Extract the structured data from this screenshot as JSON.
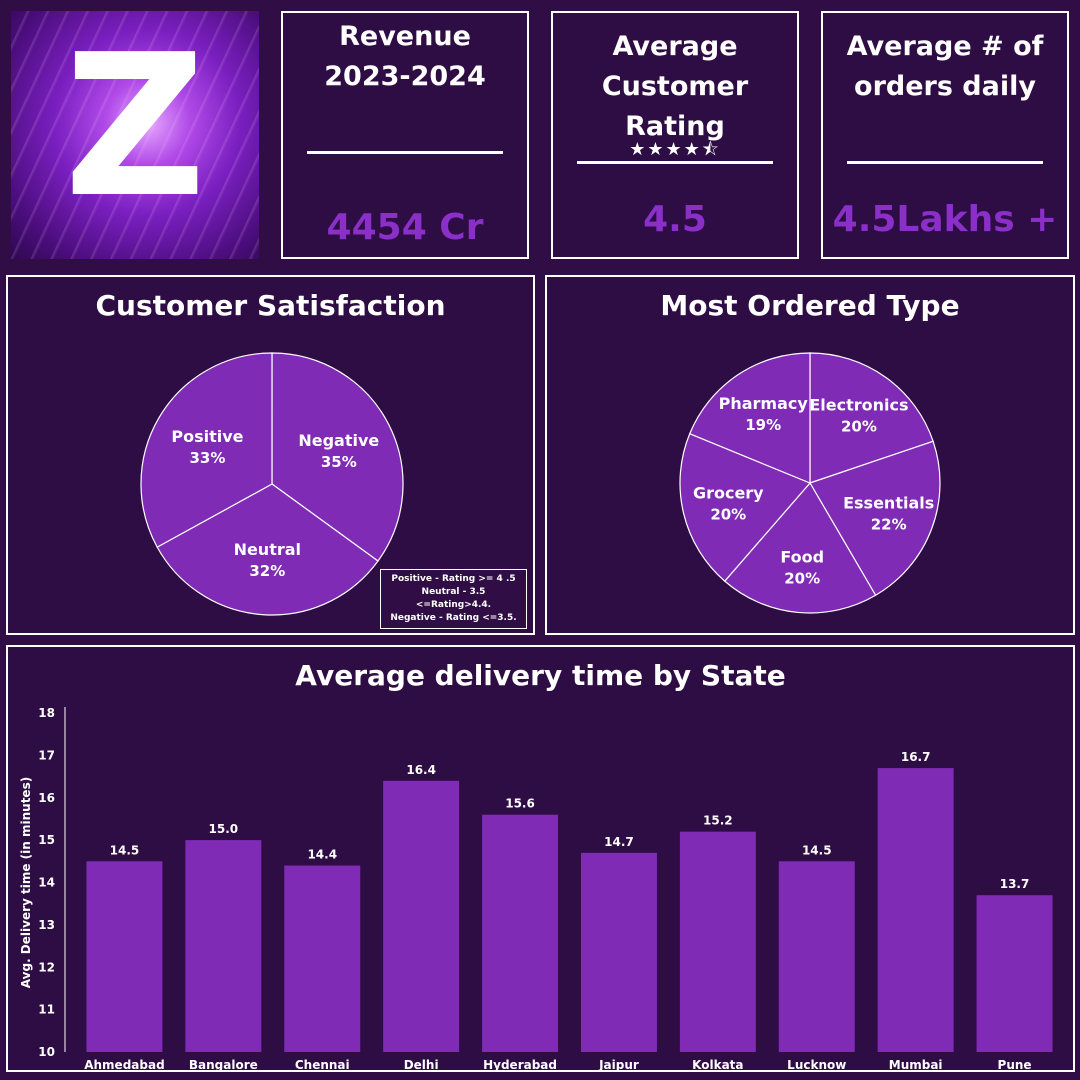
{
  "logo": {
    "letter": "Z"
  },
  "kpis": {
    "revenue": {
      "title_line1": "Revenue",
      "title_line2": "2023-2024",
      "value": "4454 Cr"
    },
    "rating": {
      "title_line1": "Average",
      "title_line2": "Customer Rating",
      "stars": "★★★★⯪",
      "value": "4.5"
    },
    "orders": {
      "title_line1": "Average # of",
      "title_line2": "orders daily",
      "value": "4.5Lakhs +"
    }
  },
  "satisfaction": {
    "title": "Customer Satisfaction",
    "legend": [
      "Positive - Rating >= 4 .5",
      "Neutral - 3.5 <=Rating>4.4.",
      "Negative - Rating <=3.5."
    ]
  },
  "ordered": {
    "title": "Most Ordered Type"
  },
  "delivery": {
    "title": "Average delivery time by State"
  },
  "colors": {
    "accent": "#8b2fc9",
    "bar": "#7f2bb5",
    "background": "#300d45",
    "slice": "#7f2bb5"
  },
  "chart_data": [
    {
      "type": "pie",
      "title": "Customer Satisfaction",
      "labels": [
        "Negative",
        "Neutral",
        "Positive"
      ],
      "values": [
        35,
        32,
        33
      ],
      "value_labels": [
        "35%",
        "32%",
        "33%"
      ]
    },
    {
      "type": "pie",
      "title": "Most Ordered Type",
      "labels": [
        "Electronics",
        "Essentials",
        "Food",
        "Grocery",
        "Pharmacy"
      ],
      "values": [
        20,
        22,
        20,
        20,
        19
      ],
      "value_labels": [
        "20%",
        "22%",
        "20%",
        "20%",
        "19%"
      ]
    },
    {
      "type": "bar",
      "title": "Average delivery time by State",
      "ylabel": "Avg. Delivery time (in minutes)",
      "xlabel": "",
      "categories": [
        "Ahmedabad",
        "Bangalore",
        "Chennai",
        "Delhi",
        "Hyderabad",
        "Jaipur",
        "Kolkata",
        "Lucknow",
        "Mumbai",
        "Pune"
      ],
      "values": [
        14.5,
        15.0,
        14.4,
        16.4,
        15.6,
        14.7,
        15.2,
        14.5,
        16.7,
        13.7
      ],
      "value_labels": [
        "14.5",
        "15.0",
        "14.4",
        "16.4",
        "15.6",
        "14.7",
        "15.2",
        "14.5",
        "16.7",
        "13.7"
      ],
      "ylim": [
        10,
        18
      ],
      "yticks": [
        "10",
        "11",
        "12",
        "13",
        "14",
        "15",
        "16",
        "17",
        "18"
      ],
      "grid": false,
      "legend": "none"
    }
  ]
}
